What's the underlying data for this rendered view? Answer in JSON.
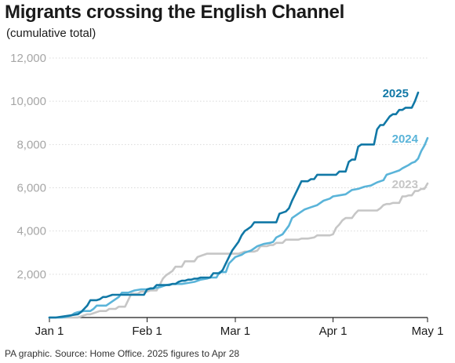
{
  "title": "Migrants crossing the English Channel",
  "subtitle": "(cumulative total)",
  "source": "PA graphic. Source: Home Office. 2025 figures to Apr 28",
  "chart_data": {
    "type": "line",
    "title": "Migrants crossing the English Channel",
    "subtitle": "(cumulative total)",
    "xlabel": "",
    "ylabel": "",
    "x_unit": "day of year",
    "xlim": [
      1,
      121
    ],
    "ylim": [
      0,
      12000
    ],
    "yticks": [
      2000,
      4000,
      6000,
      8000,
      10000,
      12000
    ],
    "ytick_labels": [
      "2,000",
      "4,000",
      "6,000",
      "8,000",
      "10,000",
      "12,000"
    ],
    "xticks": [
      1,
      32,
      60,
      91,
      121
    ],
    "xtick_labels": [
      "Jan 1",
      "Feb 1",
      "Mar 1",
      "Apr 1",
      "May 1"
    ],
    "grid": "horizontal",
    "legend": "inline labels at line ends",
    "series": [
      {
        "name": "2023",
        "color": "#c6c6c6",
        "x": [
          1,
          10,
          13,
          14,
          17,
          19,
          20,
          22,
          23,
          25,
          26,
          27,
          29,
          30,
          32,
          33,
          35,
          36,
          37,
          38,
          39,
          40,
          41,
          43,
          44,
          47,
          48,
          50,
          51,
          52,
          53,
          54,
          55,
          56,
          57,
          60,
          61,
          62,
          63,
          64,
          66,
          67,
          68,
          70,
          71,
          72,
          73,
          75,
          76,
          77,
          80,
          81,
          82,
          83,
          85,
          86,
          87,
          88,
          89,
          90,
          91,
          92,
          93,
          94,
          95,
          97,
          98,
          99,
          100,
          101,
          102,
          103,
          104,
          105,
          106,
          107,
          108,
          109,
          110,
          111,
          112,
          113,
          114,
          115,
          116,
          117,
          118,
          119,
          120,
          121
        ],
        "values": [
          0,
          0,
          150,
          150,
          300,
          300,
          400,
          400,
          500,
          500,
          800,
          1100,
          1100,
          1200,
          1200,
          1250,
          1250,
          1500,
          1800,
          1950,
          2050,
          2150,
          2350,
          2350,
          2600,
          2600,
          2800,
          2900,
          2950,
          2950,
          2950,
          2950,
          2950,
          2950,
          2950,
          2950,
          2950,
          3000,
          3050,
          3050,
          3050,
          3100,
          3300,
          3300,
          3350,
          3350,
          3450,
          3450,
          3600,
          3600,
          3600,
          3650,
          3650,
          3650,
          3700,
          3800,
          3800,
          3800,
          3800,
          3800,
          3850,
          4150,
          4300,
          4500,
          4600,
          4600,
          4800,
          4950,
          4950,
          4950,
          4950,
          4950,
          4950,
          4950,
          5050,
          5200,
          5250,
          5250,
          5300,
          5300,
          5300,
          5600,
          5600,
          5650,
          5650,
          5850,
          5850,
          5950,
          5950,
          6200
        ]
      },
      {
        "name": "2024",
        "color": "#5ab4d9",
        "x": [
          1,
          5,
          7,
          8,
          9,
          10,
          12,
          14,
          15,
          16,
          17,
          19,
          21,
          23,
          24,
          26,
          28,
          30,
          32,
          34,
          36,
          38,
          40,
          43,
          45,
          47,
          49,
          51,
          52,
          54,
          55,
          57,
          58,
          60,
          62,
          63,
          65,
          67,
          69,
          71,
          72,
          73,
          75,
          77,
          78,
          80,
          82,
          84,
          86,
          88,
          90,
          91,
          93,
          95,
          97,
          99,
          101,
          103,
          105,
          106,
          107,
          108,
          110,
          112,
          113,
          115,
          116,
          117,
          118,
          119,
          120,
          121
        ],
        "values": [
          0,
          0,
          50,
          100,
          200,
          250,
          300,
          300,
          400,
          550,
          550,
          550,
          750,
          950,
          1150,
          1150,
          1250,
          1300,
          1300,
          1350,
          1400,
          1500,
          1550,
          1550,
          1600,
          1650,
          1750,
          1800,
          1850,
          1850,
          2100,
          2100,
          2500,
          2800,
          2900,
          3000,
          3100,
          3300,
          3400,
          3450,
          3500,
          3700,
          3850,
          4250,
          4600,
          4800,
          5000,
          5100,
          5200,
          5400,
          5500,
          5600,
          5650,
          5700,
          5900,
          5950,
          6050,
          6100,
          6250,
          6300,
          6350,
          6600,
          6700,
          6800,
          6900,
          7050,
          7150,
          7200,
          7350,
          7700,
          7950,
          8300
        ]
      },
      {
        "name": "2025",
        "color": "#1178a6",
        "x": [
          1,
          3,
          10,
          11,
          12,
          13,
          14,
          15,
          16,
          17,
          18,
          19,
          21,
          22,
          24,
          25,
          26,
          27,
          28,
          29,
          30,
          31,
          32,
          33,
          34,
          35,
          36,
          37,
          38,
          39,
          40,
          41,
          42,
          43,
          44,
          45,
          46,
          47,
          48,
          49,
          50,
          51,
          52,
          53,
          54,
          55,
          56,
          57,
          58,
          59,
          60,
          61,
          62,
          63,
          64,
          65,
          66,
          67,
          68,
          69,
          70,
          71,
          72,
          73,
          74,
          75,
          76,
          77,
          78,
          79,
          80,
          81,
          82,
          83,
          84,
          85,
          86,
          87,
          88,
          89,
          90,
          91,
          92,
          93,
          94,
          95,
          96,
          97,
          98,
          99,
          100,
          101,
          102,
          103,
          104,
          105,
          106,
          107,
          108,
          109,
          110,
          111,
          112,
          113,
          114,
          115,
          116,
          117,
          118
        ],
        "values": [
          0,
          0,
          150,
          250,
          400,
          550,
          800,
          800,
          800,
          850,
          950,
          950,
          1050,
          1050,
          1050,
          1050,
          1050,
          1050,
          1050,
          1050,
          1050,
          1050,
          1300,
          1350,
          1350,
          1500,
          1500,
          1500,
          1500,
          1500,
          1550,
          1550,
          1650,
          1700,
          1700,
          1750,
          1750,
          1800,
          1800,
          1850,
          1850,
          1850,
          1850,
          2050,
          2050,
          2050,
          2200,
          2500,
          2800,
          3100,
          3300,
          3500,
          3800,
          4000,
          4100,
          4200,
          4400,
          4400,
          4400,
          4400,
          4400,
          4400,
          4400,
          4400,
          4800,
          4850,
          4900,
          5050,
          5400,
          5700,
          6000,
          6300,
          6300,
          6300,
          6400,
          6400,
          6600,
          6600,
          6600,
          6600,
          6600,
          6600,
          6600,
          6750,
          6750,
          6750,
          7200,
          7300,
          7300,
          7900,
          8000,
          8000,
          8000,
          8000,
          8000,
          8700,
          8900,
          8900,
          9100,
          9300,
          9400,
          9400,
          9600,
          9600,
          9700,
          9700,
          9700,
          10000,
          10400
        ]
      }
    ]
  }
}
